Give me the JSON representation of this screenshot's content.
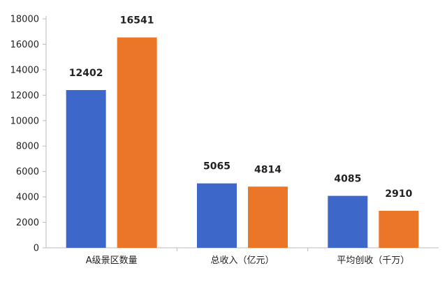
{
  "chart_data": {
    "type": "bar",
    "categories": [
      "A级景区数量",
      "总收入（亿元）",
      "平均创收（千万）"
    ],
    "series": [
      {
        "color": "#3D68C9",
        "values": [
          12402,
          5065,
          4085
        ]
      },
      {
        "color": "#EC7627",
        "values": [
          16541,
          4814,
          2910
        ]
      }
    ],
    "data_labels": [
      [
        "12402",
        "5065",
        "4085"
      ],
      [
        "16541",
        "4814",
        "2910"
      ]
    ],
    "ylim": [
      0,
      18000
    ],
    "yticks": [
      0,
      2000,
      4000,
      6000,
      8000,
      10000,
      12000,
      14000,
      16000,
      18000
    ],
    "grid": false,
    "legend": "none",
    "colors": {
      "axis": "#bbbbbb",
      "text": "#222222"
    }
  }
}
